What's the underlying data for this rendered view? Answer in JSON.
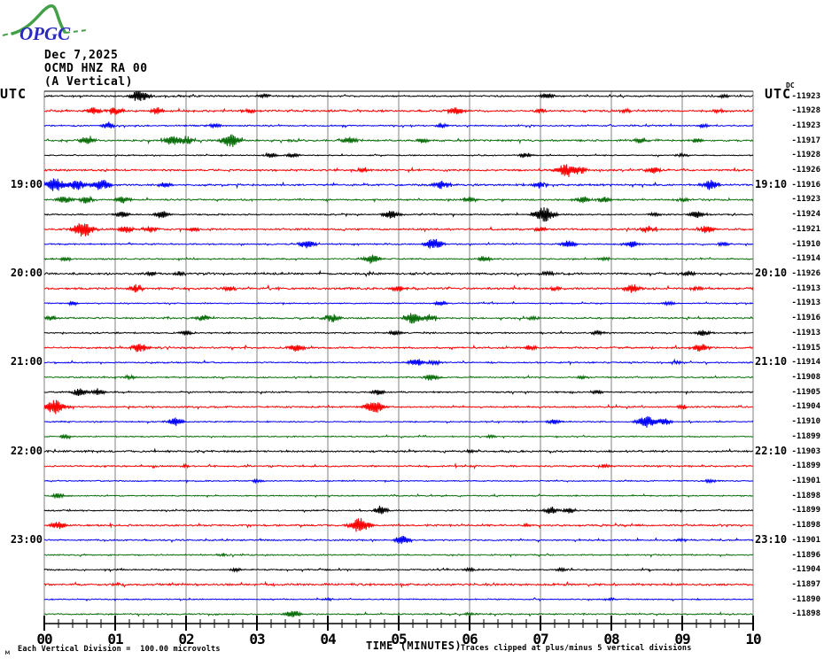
{
  "logo": {
    "text": "OPGC",
    "green": "#44a048",
    "blue": "#2a2ac0"
  },
  "title": {
    "date": "Dec 7,2025",
    "station": "OCMD HNZ RA 00",
    "component": "(A Vertical)"
  },
  "axis": {
    "left_header": "UTC",
    "right_header": "UTC",
    "dc_label": "DC",
    "xlabel": "TIME (MINUTES)",
    "x_tick_labels": [
      "00",
      "01",
      "02",
      "03",
      "04",
      "05",
      "06",
      "07",
      "08",
      "09",
      "10"
    ]
  },
  "captions": {
    "corner_glyph": "м",
    "scale": "Each Vertical Division =  100.00 microvolts",
    "clip": "Traces clipped at plus/minus 5 vertical divisions"
  },
  "colors": {
    "black": "#000000",
    "red": "#ff0000",
    "blue": "#0000ff",
    "green": "#0a6e0a",
    "grid": "#808080",
    "frame": "#000000"
  },
  "chart_data": {
    "type": "line",
    "subtype": "helicorder-seismogram",
    "title": "OCMD HNZ RA 00 (A Vertical) Dec 7,2025",
    "xlabel": "TIME (MINUTES)",
    "x_range_minutes": [
      0,
      10
    ],
    "x_major_tick": 1,
    "x_minor_tick": 0.2,
    "grid": "vertical-minute-lines",
    "traces": [
      {
        "left_label": null,
        "right_label": null,
        "color": "black",
        "dc": -11923,
        "noise": 0.7,
        "events": [
          [
            1.35,
            0.8
          ],
          [
            3.1,
            0.25
          ],
          [
            7.1,
            0.35
          ],
          [
            9.6,
            0.2
          ]
        ]
      },
      {
        "left_label": null,
        "right_label": null,
        "color": "red",
        "dc": -11928,
        "noise": 0.9,
        "events": [
          [
            0.7,
            0.45
          ],
          [
            1.0,
            0.5
          ],
          [
            1.6,
            0.45
          ],
          [
            2.9,
            0.3
          ],
          [
            5.8,
            0.55
          ],
          [
            7.0,
            0.3
          ],
          [
            8.2,
            0.25
          ],
          [
            9.5,
            0.3
          ]
        ]
      },
      {
        "left_label": null,
        "right_label": null,
        "color": "blue",
        "dc": -11923,
        "noise": 0.6,
        "events": [
          [
            0.9,
            0.4
          ],
          [
            2.4,
            0.3
          ],
          [
            5.6,
            0.25
          ],
          [
            9.3,
            0.25
          ]
        ]
      },
      {
        "left_label": null,
        "right_label": null,
        "color": "green",
        "dc": -11917,
        "noise": 0.8,
        "events": [
          [
            0.6,
            0.5
          ],
          [
            1.8,
            0.6
          ],
          [
            2.0,
            0.5
          ],
          [
            2.62,
            0.85
          ],
          [
            4.3,
            0.45
          ],
          [
            5.35,
            0.3
          ],
          [
            8.4,
            0.35
          ],
          [
            9.2,
            0.3
          ]
        ]
      },
      {
        "left_label": null,
        "right_label": null,
        "color": "black",
        "dc": -11928,
        "noise": 0.5,
        "events": [
          [
            3.2,
            0.3
          ],
          [
            3.5,
            0.3
          ],
          [
            6.8,
            0.35
          ],
          [
            9.0,
            0.2
          ]
        ]
      },
      {
        "left_label": null,
        "right_label": null,
        "color": "red",
        "dc": -11926,
        "noise": 0.8,
        "events": [
          [
            4.5,
            0.3
          ],
          [
            7.35,
            0.75
          ],
          [
            7.55,
            0.5
          ],
          [
            8.6,
            0.4
          ]
        ]
      },
      {
        "left_label": "19:00",
        "right_label": "19:10",
        "color": "blue",
        "dc": -11916,
        "noise": 0.8,
        "events": [
          [
            0.15,
            0.85
          ],
          [
            0.45,
            0.7
          ],
          [
            0.8,
            0.75
          ],
          [
            1.7,
            0.35
          ],
          [
            5.6,
            0.5
          ],
          [
            7.0,
            0.4
          ],
          [
            9.4,
            0.65
          ]
        ]
      },
      {
        "left_label": null,
        "right_label": null,
        "color": "green",
        "dc": -11923,
        "noise": 0.7,
        "events": [
          [
            0.3,
            0.5
          ],
          [
            0.6,
            0.45
          ],
          [
            1.1,
            0.5
          ],
          [
            6.0,
            0.4
          ],
          [
            7.6,
            0.45
          ],
          [
            7.9,
            0.4
          ],
          [
            9.0,
            0.25
          ]
        ]
      },
      {
        "left_label": null,
        "right_label": null,
        "color": "black",
        "dc": -11924,
        "noise": 0.6,
        "events": [
          [
            1.1,
            0.4
          ],
          [
            1.65,
            0.5
          ],
          [
            4.9,
            0.55
          ],
          [
            7.05,
            1.0
          ],
          [
            8.6,
            0.25
          ],
          [
            9.2,
            0.45
          ]
        ]
      },
      {
        "left_label": null,
        "right_label": null,
        "color": "red",
        "dc": -11921,
        "noise": 0.8,
        "events": [
          [
            0.55,
            1.0
          ],
          [
            1.15,
            0.5
          ],
          [
            1.5,
            0.4
          ],
          [
            2.1,
            0.3
          ],
          [
            7.0,
            0.3
          ],
          [
            8.5,
            0.4
          ],
          [
            9.35,
            0.5
          ]
        ]
      },
      {
        "left_label": null,
        "right_label": null,
        "color": "blue",
        "dc": -11910,
        "noise": 0.6,
        "events": [
          [
            3.7,
            0.55
          ],
          [
            5.5,
            0.75
          ],
          [
            7.4,
            0.5
          ],
          [
            8.3,
            0.4
          ],
          [
            9.6,
            0.3
          ]
        ]
      },
      {
        "left_label": null,
        "right_label": null,
        "color": "green",
        "dc": -11914,
        "noise": 0.6,
        "events": [
          [
            0.3,
            0.25
          ],
          [
            4.62,
            0.6
          ],
          [
            6.2,
            0.4
          ],
          [
            7.9,
            0.2
          ]
        ]
      },
      {
        "left_label": "20:00",
        "right_label": "20:10",
        "color": "black",
        "dc": -11926,
        "noise": 0.9,
        "events": [
          [
            1.5,
            0.3
          ],
          [
            1.9,
            0.3
          ],
          [
            7.1,
            0.3
          ],
          [
            9.1,
            0.25
          ]
        ]
      },
      {
        "left_label": null,
        "right_label": null,
        "color": "red",
        "dc": -11913,
        "noise": 0.9,
        "events": [
          [
            1.3,
            0.5
          ],
          [
            2.6,
            0.3
          ],
          [
            5.0,
            0.35
          ],
          [
            7.2,
            0.3
          ],
          [
            8.3,
            0.55
          ],
          [
            9.2,
            0.3
          ]
        ]
      },
      {
        "left_label": null,
        "right_label": null,
        "color": "blue",
        "dc": -11913,
        "noise": 0.5,
        "events": [
          [
            0.4,
            0.2
          ],
          [
            5.6,
            0.3
          ],
          [
            8.8,
            0.25
          ]
        ]
      },
      {
        "left_label": null,
        "right_label": null,
        "color": "green",
        "dc": -11916,
        "noise": 0.7,
        "events": [
          [
            0.1,
            0.35
          ],
          [
            2.25,
            0.4
          ],
          [
            4.05,
            0.55
          ],
          [
            5.2,
            0.7
          ],
          [
            5.45,
            0.4
          ],
          [
            6.9,
            0.2
          ]
        ]
      },
      {
        "left_label": null,
        "right_label": null,
        "color": "black",
        "dc": -11913,
        "noise": 0.6,
        "events": [
          [
            2.0,
            0.3
          ],
          [
            4.95,
            0.3
          ],
          [
            7.8,
            0.3
          ],
          [
            9.3,
            0.4
          ]
        ]
      },
      {
        "left_label": null,
        "right_label": null,
        "color": "red",
        "dc": -11915,
        "noise": 0.8,
        "events": [
          [
            1.35,
            0.6
          ],
          [
            3.55,
            0.5
          ],
          [
            6.85,
            0.3
          ],
          [
            9.25,
            0.5
          ]
        ]
      },
      {
        "left_label": "21:00",
        "right_label": "21:10",
        "color": "blue",
        "dc": -11914,
        "noise": 0.6,
        "events": [
          [
            5.25,
            0.5
          ],
          [
            5.5,
            0.3
          ],
          [
            8.9,
            0.2
          ]
        ]
      },
      {
        "left_label": null,
        "right_label": null,
        "color": "green",
        "dc": -11908,
        "noise": 0.6,
        "events": [
          [
            1.2,
            0.25
          ],
          [
            5.45,
            0.45
          ],
          [
            7.6,
            0.2
          ]
        ]
      },
      {
        "left_label": null,
        "right_label": null,
        "color": "black",
        "dc": -11905,
        "noise": 0.6,
        "events": [
          [
            0.5,
            0.5
          ],
          [
            0.75,
            0.4
          ],
          [
            4.7,
            0.4
          ],
          [
            7.8,
            0.25
          ]
        ]
      },
      {
        "left_label": null,
        "right_label": null,
        "color": "red",
        "dc": -11904,
        "noise": 0.7,
        "events": [
          [
            0.15,
            0.95
          ],
          [
            4.65,
            0.85
          ],
          [
            9.0,
            0.25
          ]
        ]
      },
      {
        "left_label": null,
        "right_label": null,
        "color": "blue",
        "dc": -11910,
        "noise": 0.5,
        "events": [
          [
            1.85,
            0.55
          ],
          [
            7.2,
            0.35
          ],
          [
            8.5,
            0.8
          ],
          [
            8.75,
            0.45
          ]
        ]
      },
      {
        "left_label": null,
        "right_label": null,
        "color": "green",
        "dc": -11899,
        "noise": 0.5,
        "events": [
          [
            0.3,
            0.25
          ],
          [
            6.3,
            0.2
          ]
        ]
      },
      {
        "left_label": "22:00",
        "right_label": "22:10",
        "color": "black",
        "dc": -11903,
        "noise": 0.8,
        "events": [
          [
            6.0,
            0.2
          ]
        ]
      },
      {
        "left_label": null,
        "right_label": null,
        "color": "red",
        "dc": -11899,
        "noise": 0.7,
        "events": [
          [
            2.0,
            0.2
          ],
          [
            7.9,
            0.25
          ]
        ]
      },
      {
        "left_label": null,
        "right_label": null,
        "color": "blue",
        "dc": -11901,
        "noise": 0.5,
        "events": [
          [
            3.0,
            0.2
          ],
          [
            9.4,
            0.2
          ]
        ]
      },
      {
        "left_label": null,
        "right_label": null,
        "color": "green",
        "dc": -11898,
        "noise": 0.5,
        "events": [
          [
            0.2,
            0.3
          ]
        ]
      },
      {
        "left_label": null,
        "right_label": null,
        "color": "black",
        "dc": -11899,
        "noise": 0.6,
        "events": [
          [
            4.75,
            0.5
          ],
          [
            7.15,
            0.45
          ],
          [
            7.4,
            0.3
          ]
        ]
      },
      {
        "left_label": null,
        "right_label": null,
        "color": "red",
        "dc": -11898,
        "noise": 0.8,
        "events": [
          [
            0.2,
            0.5
          ],
          [
            4.45,
            0.95
          ],
          [
            6.8,
            0.2
          ]
        ]
      },
      {
        "left_label": "23:00",
        "right_label": "23:10",
        "color": "blue",
        "dc": -11901,
        "noise": 0.6,
        "events": [
          [
            5.05,
            0.55
          ],
          [
            9.0,
            0.2
          ]
        ]
      },
      {
        "left_label": null,
        "right_label": null,
        "color": "green",
        "dc": -11896,
        "noise": 0.6,
        "events": [
          [
            2.5,
            0.15
          ]
        ]
      },
      {
        "left_label": null,
        "right_label": null,
        "color": "black",
        "dc": -11904,
        "noise": 0.6,
        "events": [
          [
            2.7,
            0.2
          ],
          [
            6.0,
            0.2
          ],
          [
            7.3,
            0.2
          ]
        ]
      },
      {
        "left_label": null,
        "right_label": null,
        "color": "red",
        "dc": -11897,
        "noise": 0.9,
        "events": [
          [
            1.0,
            0.15
          ]
        ]
      },
      {
        "left_label": null,
        "right_label": null,
        "color": "blue",
        "dc": -11890,
        "noise": 0.5,
        "events": [
          [
            4.0,
            0.15
          ],
          [
            8.0,
            0.15
          ]
        ]
      },
      {
        "left_label": null,
        "right_label": null,
        "color": "green",
        "dc": -11898,
        "noise": 0.6,
        "events": [
          [
            3.5,
            0.5
          ],
          [
            6.0,
            0.2
          ]
        ]
      }
    ]
  }
}
